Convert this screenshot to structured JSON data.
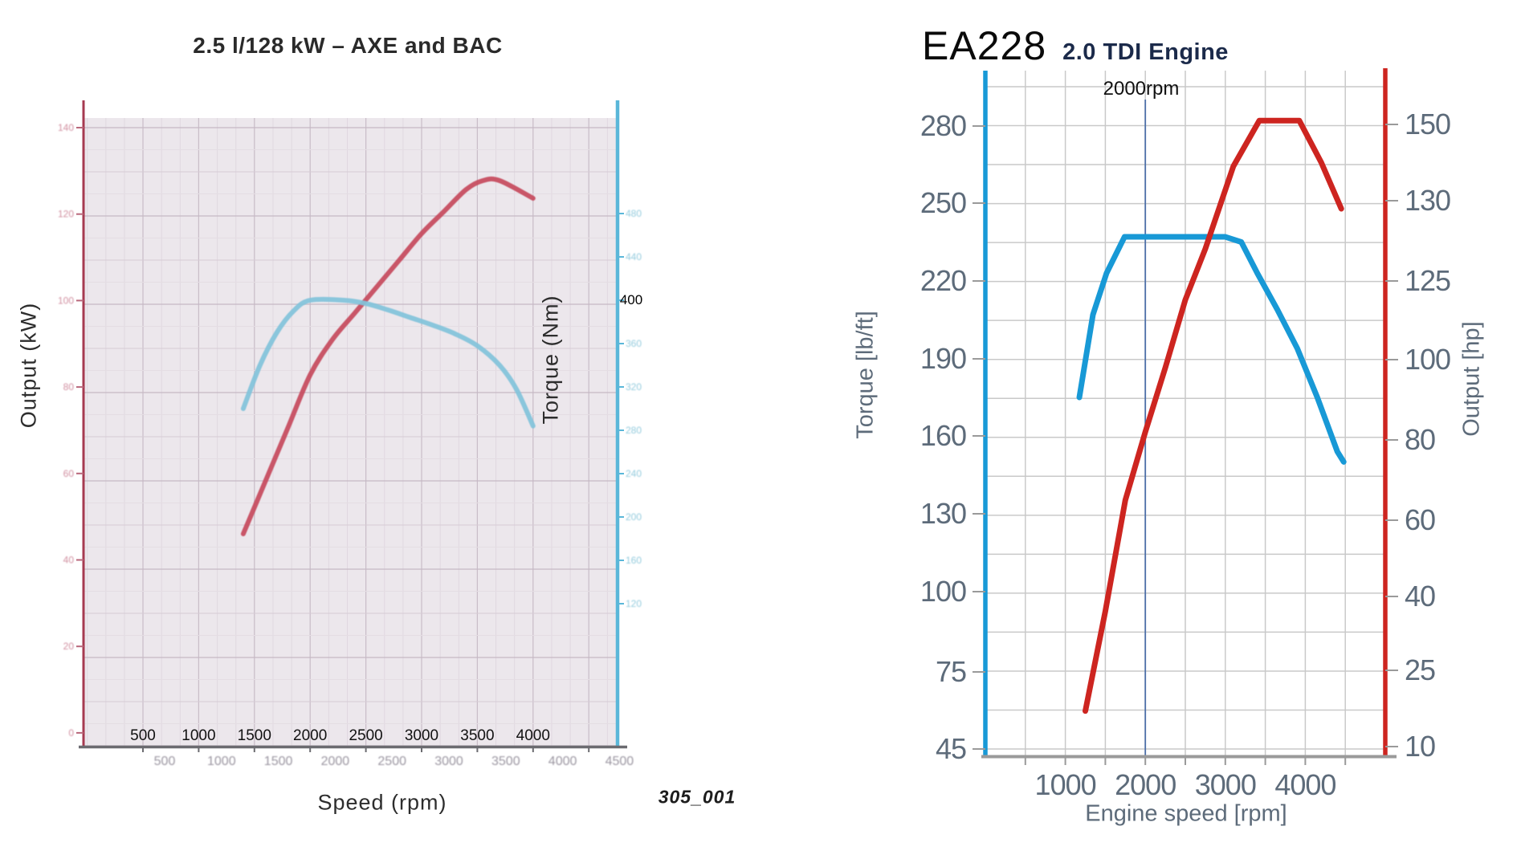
{
  "colors": {
    "left_power_red": "#c64a5e",
    "left_torque_blue": "#82c3da",
    "left_axis_red": "#a63a50",
    "left_axis_blue": "#5ab7d9",
    "left_bottom_axis_gray": "#6b6b70",
    "right_power_red": "#cd2520",
    "right_torque_blue": "#1899d6",
    "right_grid_gray": "#c9c9c9",
    "right_axis_gray": "#9a9a9a",
    "annotation_line_blue": "#4c6fa8"
  },
  "left_chart": {
    "title": "2.5 l/128 kW – AXE and BAC",
    "x_axis_label": "Speed (rpm)",
    "y_left_label": "Output (kW)",
    "y_right_label": "Torque (Nm)",
    "figure_code": "305_001",
    "torque_annotation": "400",
    "x_overlay_labels": [
      "500",
      "1000",
      "1500",
      "2000",
      "2500",
      "3000",
      "3500",
      "4000"
    ],
    "x_faded_labels": [
      "500",
      "1000",
      "1500",
      "2000",
      "2500",
      "3000",
      "3500",
      "4000",
      "4500"
    ],
    "y_left_faded_labels": [
      "140",
      "120",
      "100",
      "80",
      "60",
      "40",
      "20",
      "0"
    ],
    "y_right_faded_labels": [
      "480",
      "440",
      "360",
      "320",
      "280",
      "240",
      "200",
      "160",
      "120"
    ],
    "chart_data": {
      "type": "line",
      "title": "2.5 l/128 kW – AXE and BAC",
      "xlabel": "Speed (rpm)",
      "x_ticks": [
        500,
        1000,
        1500,
        2000,
        2500,
        3000,
        3500,
        4000
      ],
      "y_left": {
        "label": "Output (kW)",
        "ticks": [
          140,
          120,
          100,
          80,
          60,
          40,
          20,
          0
        ]
      },
      "y_right": {
        "label": "Torque (Nm)",
        "ticks": [
          480,
          440,
          400,
          360,
          320,
          280,
          240,
          200,
          160,
          120
        ],
        "highlighted_tick": "400"
      },
      "legend": "none",
      "grid": true,
      "series": [
        {
          "name": "output-power",
          "axis": "left",
          "unit": "kW",
          "color_key": "left_power_red",
          "points": [
            [
              1400,
              48
            ],
            [
              1600,
              60
            ],
            [
              1800,
              72
            ],
            [
              2000,
              84
            ],
            [
              2200,
              92
            ],
            [
              2400,
              98
            ],
            [
              2600,
              104
            ],
            [
              2800,
              110
            ],
            [
              3000,
              116
            ],
            [
              3200,
              121
            ],
            [
              3400,
              126
            ],
            [
              3550,
              128
            ],
            [
              3700,
              128
            ],
            [
              4000,
              124
            ]
          ]
        },
        {
          "name": "torque",
          "axis": "right",
          "unit": "Nm",
          "color_key": "left_torque_blue",
          "points": [
            [
              1400,
              300
            ],
            [
              1550,
              340
            ],
            [
              1700,
              370
            ],
            [
              1850,
              390
            ],
            [
              2000,
              400
            ],
            [
              2300,
              400
            ],
            [
              2500,
              397
            ],
            [
              2700,
              391
            ],
            [
              2900,
              384
            ],
            [
              3100,
              377
            ],
            [
              3300,
              369
            ],
            [
              3500,
              358
            ],
            [
              3700,
              340
            ],
            [
              3850,
              318
            ],
            [
              4000,
              284
            ]
          ]
        }
      ]
    }
  },
  "right_chart": {
    "title_main": "EA228",
    "title_sub": "2.0 TDI Engine",
    "x_axis_label": "Engine speed [rpm]",
    "y_left_label": "Torque [lb/ft]",
    "y_right_label": "Output [hp]",
    "annotation_label": "2000rpm",
    "x_tick_labels": [
      "1000",
      "2000",
      "3000",
      "4000"
    ],
    "y_left_tick_labels": [
      "280",
      "250",
      "220",
      "190",
      "160",
      "130",
      "100",
      "75",
      "45"
    ],
    "y_right_tick_labels": [
      "150",
      "130",
      "125",
      "100",
      "80",
      "60",
      "40",
      "25",
      "10"
    ],
    "chart_data": {
      "type": "line",
      "title": "EA228 2.0 TDI Engine",
      "xlabel": "Engine speed [rpm]",
      "x_ticks": [
        1000,
        2000,
        3000,
        4000
      ],
      "annotation": {
        "label": "2000rpm",
        "x": 2000
      },
      "y_left": {
        "label": "Torque [lb/ft]",
        "ticks": [
          280,
          250,
          220,
          190,
          160,
          130,
          100,
          75,
          45
        ]
      },
      "y_right": {
        "label": "Output [hp]",
        "ticks": [
          150,
          130,
          125,
          100,
          80,
          60,
          40,
          25,
          10
        ]
      },
      "legend": "none",
      "grid": true,
      "series": [
        {
          "name": "torque",
          "axis": "left",
          "unit": "lb/ft",
          "color_key": "right_torque_blue",
          "points": [
            [
              1175,
              175
            ],
            [
              1345,
              207
            ],
            [
              1515,
              223
            ],
            [
              1740,
              237
            ],
            [
              3000,
              237
            ],
            [
              3200,
              235
            ],
            [
              3400,
              223
            ],
            [
              3650,
              209
            ],
            [
              3900,
              194
            ],
            [
              4150,
              175
            ],
            [
              4400,
              154
            ],
            [
              4480,
              150
            ]
          ]
        },
        {
          "name": "output-power",
          "axis": "right",
          "unit": "hp",
          "color_key": "right_power_red",
          "points": [
            [
              1250,
              17
            ],
            [
              1500,
              37
            ],
            [
              1750,
              65
            ],
            [
              2000,
              82
            ],
            [
              2250,
              98
            ],
            [
              2500,
              119
            ],
            [
              2750,
              127
            ],
            [
              3100,
              139
            ],
            [
              3425,
              151
            ],
            [
              3925,
              151
            ],
            [
              4200,
              140
            ],
            [
              4450,
              129.5
            ]
          ]
        }
      ]
    }
  }
}
